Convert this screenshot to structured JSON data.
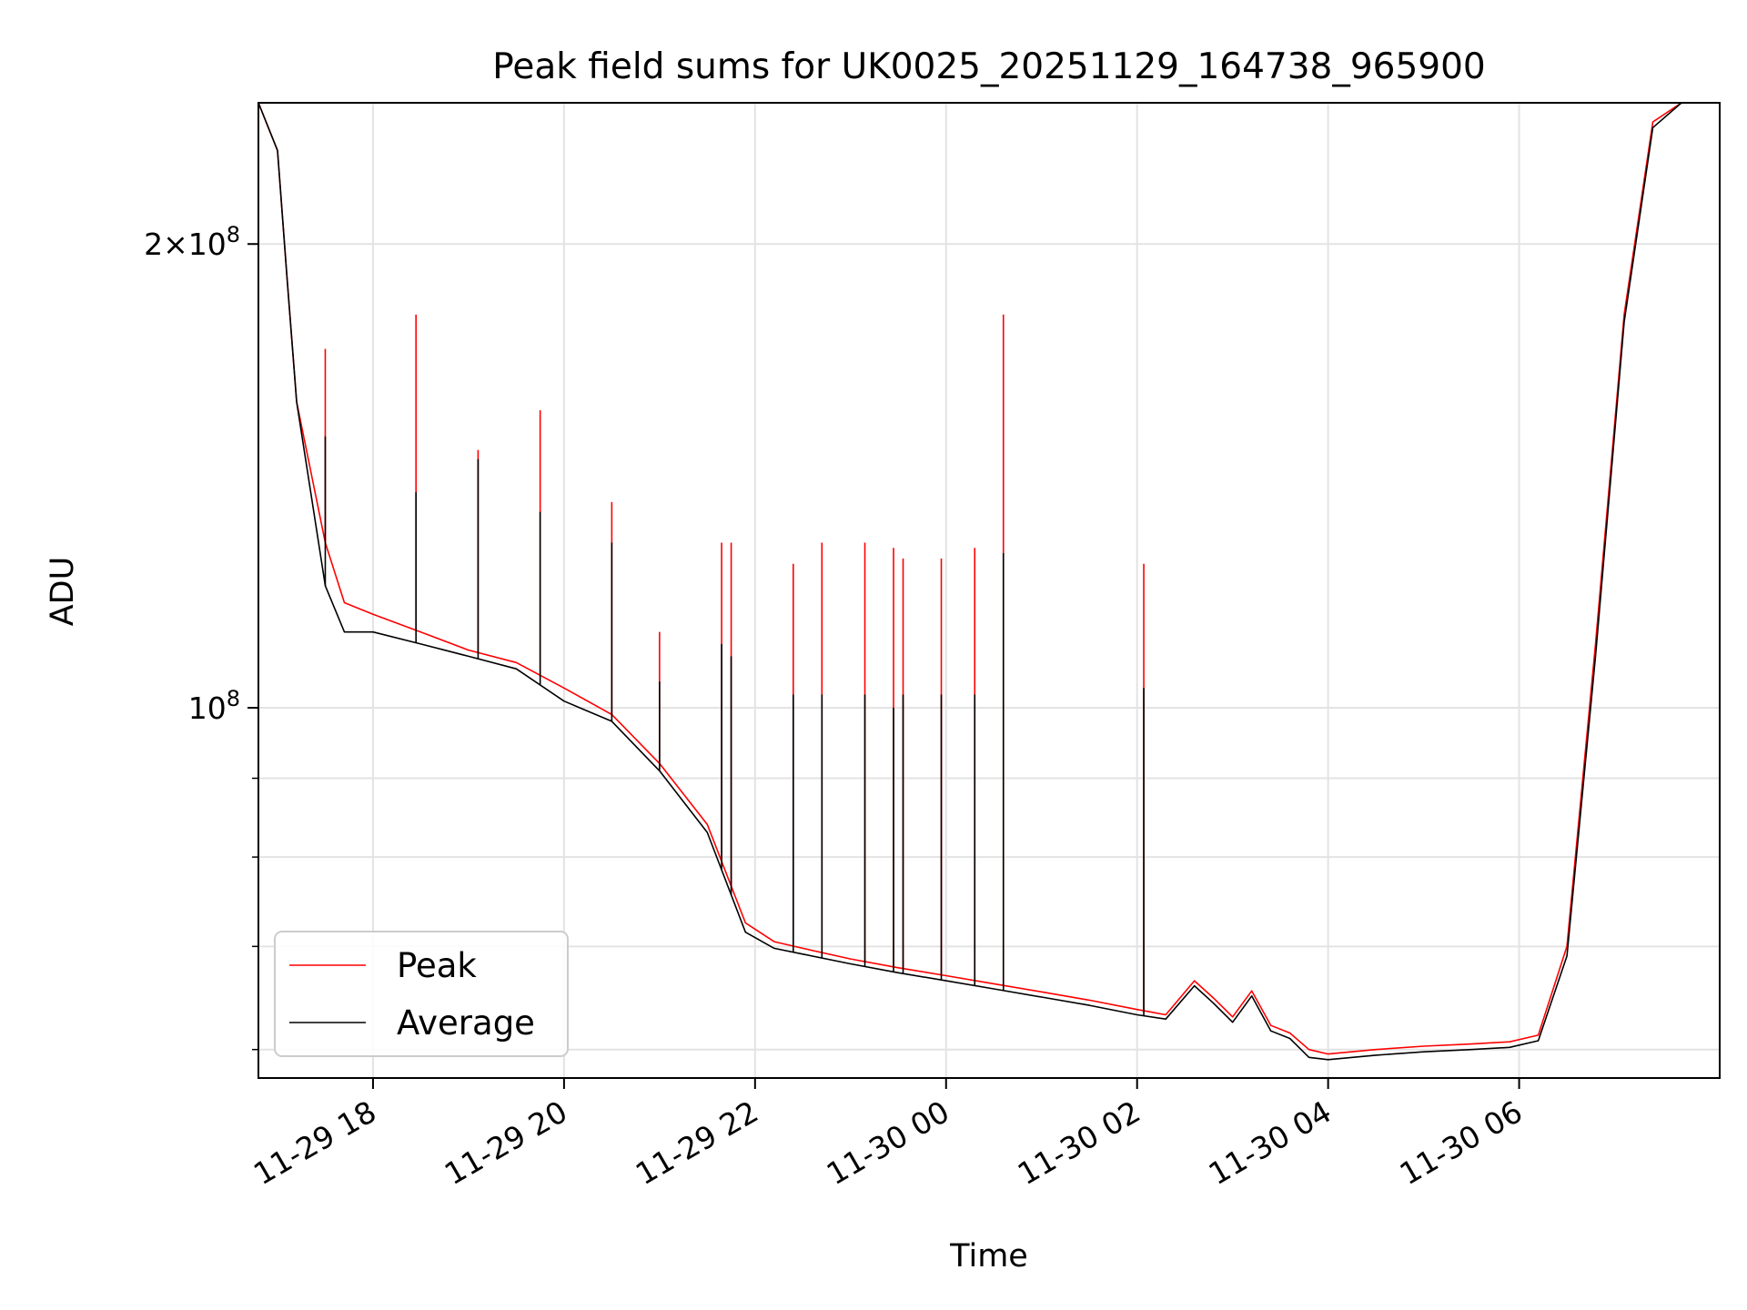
{
  "chart_data": {
    "type": "line",
    "title": "Peak field sums for UK0025_20251129_164738_965900",
    "xlabel": "Time",
    "ylabel": "ADU",
    "yscale": "log",
    "ylim": [
      57500000,
      247000000
    ],
    "xlim_hours": [
      -1.2,
      14.1
    ],
    "x_reference": "2025-11-29 18:00",
    "grid": true,
    "legend_location": "lower-left",
    "xtick_labels": [
      "11-29 18",
      "11-29 20",
      "11-29 22",
      "11-30 00",
      "11-30 02",
      "11-30 04",
      "11-30 06"
    ],
    "xtick_hours": [
      0,
      2,
      4,
      6,
      8,
      10,
      12
    ],
    "ytick_major": [
      {
        "value": 200000000,
        "mantissa": "2×10",
        "exponent": "8"
      },
      {
        "value": 100000000,
        "mantissa": "10",
        "exponent": "8"
      }
    ],
    "ytick_minor": [
      60000000,
      70000000,
      80000000,
      90000000
    ],
    "x_hours": [
      -1.2,
      -1.0,
      -0.9,
      -0.8,
      -0.5,
      -0.3,
      0.0,
      0.5,
      1.0,
      1.5,
      2.0,
      2.5,
      3.0,
      3.5,
      3.9,
      4.2,
      4.5,
      5.0,
      5.5,
      6.0,
      6.5,
      7.0,
      7.5,
      8.0,
      8.3,
      8.6,
      8.8,
      9.0,
      9.2,
      9.4,
      9.6,
      9.8,
      10.0,
      10.5,
      11.0,
      11.5,
      11.9,
      12.2,
      12.5,
      12.8,
      13.1,
      13.4,
      13.7,
      13.9,
      14.1
    ],
    "series": [
      {
        "name": "Peak",
        "color": "#ff0000",
        "values": [
          247000000,
          230000000,
          190000000,
          158000000,
          128000000,
          117000000,
          115000000,
          112000000,
          109000000,
          107000000,
          103000000,
          99000000,
          92000000,
          84000000,
          72500000,
          70500000,
          69800000,
          68700000,
          67800000,
          67000000,
          66200000,
          65400000,
          64600000,
          63700000,
          63200000,
          66500000,
          64800000,
          63000000,
          65500000,
          62200000,
          61500000,
          60000000,
          59600000,
          60000000,
          60300000,
          60500000,
          60700000,
          61300000,
          70000000,
          110000000,
          180000000,
          240000000,
          247000000,
          247000000,
          247000000
        ]
      },
      {
        "name": "Average",
        "color": "#000000",
        "values": [
          247000000,
          230000000,
          190000000,
          158000000,
          120000000,
          112000000,
          112000000,
          110000000,
          108000000,
          106000000,
          101000000,
          98000000,
          91000000,
          83000000,
          71500000,
          69800000,
          69200000,
          68200000,
          67300000,
          66500000,
          65700000,
          64900000,
          64100000,
          63200000,
          62800000,
          66000000,
          64300000,
          62500000,
          65000000,
          61700000,
          61000000,
          59300000,
          59100000,
          59500000,
          59800000,
          60000000,
          60200000,
          60800000,
          69000000,
          108000000,
          178000000,
          238000000,
          247000000,
          247000000,
          247000000
        ]
      }
    ],
    "spikes": [
      {
        "x": -0.5,
        "peak": 171000000,
        "avg": 150000000
      },
      {
        "x": 0.45,
        "peak": 180000000,
        "avg": 138000000
      },
      {
        "x": 1.1,
        "peak": 147000000,
        "avg": 145000000
      },
      {
        "x": 1.75,
        "peak": 156000000,
        "avg": 134000000
      },
      {
        "x": 2.5,
        "peak": 136000000,
        "avg": 128000000
      },
      {
        "x": 3.0,
        "peak": 112000000,
        "avg": 104000000
      },
      {
        "x": 3.65,
        "peak": 128000000,
        "avg": 110000000
      },
      {
        "x": 3.75,
        "peak": 128000000,
        "avg": 108000000
      },
      {
        "x": 4.4,
        "peak": 124000000,
        "avg": 102000000
      },
      {
        "x": 4.7,
        "peak": 128000000,
        "avg": 102000000
      },
      {
        "x": 5.15,
        "peak": 128000000,
        "avg": 102000000
      },
      {
        "x": 5.45,
        "peak": 127000000,
        "avg": 100000000
      },
      {
        "x": 5.55,
        "peak": 125000000,
        "avg": 102000000
      },
      {
        "x": 5.95,
        "peak": 125000000,
        "avg": 102000000
      },
      {
        "x": 6.3,
        "peak": 127000000,
        "avg": 102000000
      },
      {
        "x": 6.6,
        "peak": 180000000,
        "avg": 126000000
      },
      {
        "x": 8.07,
        "peak": 124000000,
        "avg": 103000000
      }
    ]
  },
  "legend": {
    "peak_label": "Peak",
    "average_label": "Average"
  }
}
